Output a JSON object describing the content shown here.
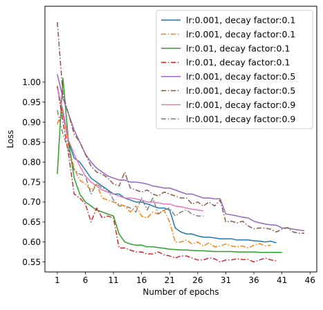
{
  "chart_data": {
    "type": "line",
    "title": "",
    "xlabel": "Number of epochs",
    "ylabel": "Loss",
    "xlim": [
      -1.2,
      47.2
    ],
    "ylim": [
      0.525,
      1.19
    ],
    "xticks": [
      1,
      6,
      11,
      16,
      21,
      26,
      31,
      36,
      41,
      46
    ],
    "yticks": [
      0.55,
      0.6,
      0.65,
      0.7,
      0.75,
      0.8,
      0.85,
      0.9,
      0.95,
      1.0
    ],
    "ytick_labels": [
      "0.55",
      "0.60",
      "0.65",
      "0.70",
      "0.75",
      "0.80",
      "0.85",
      "0.90",
      "0.95",
      "1.00"
    ],
    "grid": false,
    "legend_position": "top-right",
    "series": [
      {
        "name": "lr:0.001, decay factor:0.1",
        "color": "#1f77b4",
        "style": "solid",
        "x": [
          1,
          2,
          3,
          4,
          5,
          6,
          7,
          8,
          9,
          10,
          11,
          12,
          13,
          14,
          15,
          16,
          17,
          18,
          19,
          20,
          21,
          22,
          23,
          24,
          25,
          26,
          27,
          28,
          29,
          30,
          31,
          32,
          33,
          34,
          35,
          36,
          37,
          38,
          39,
          40
        ],
        "y": [
          0.99,
          0.92,
          0.85,
          0.81,
          0.8,
          0.78,
          0.76,
          0.75,
          0.74,
          0.73,
          0.72,
          0.72,
          0.71,
          0.705,
          0.7,
          0.7,
          0.695,
          0.69,
          0.685,
          0.685,
          0.68,
          0.635,
          0.625,
          0.62,
          0.62,
          0.615,
          0.612,
          0.612,
          0.61,
          0.608,
          0.608,
          0.608,
          0.605,
          0.605,
          0.605,
          0.603,
          0.602,
          0.6,
          0.602,
          0.598
        ]
      },
      {
        "name": "lr:0.001, decay factor:0.1",
        "color": "#ff7f0e",
        "style": "dashdot",
        "x": [
          1,
          2,
          3,
          4,
          5,
          6,
          7,
          8,
          9,
          10,
          11,
          12,
          13,
          14,
          15,
          16,
          17,
          18,
          19,
          20,
          21,
          22,
          23,
          24,
          25,
          26,
          27,
          28,
          29,
          30,
          31,
          32,
          33,
          34,
          35,
          36,
          37,
          38,
          39
        ],
        "y": [
          0.895,
          0.93,
          0.84,
          0.785,
          0.755,
          0.745,
          0.73,
          0.745,
          0.71,
          0.705,
          0.7,
          0.695,
          0.69,
          0.675,
          0.69,
          0.665,
          0.66,
          0.675,
          0.67,
          0.68,
          0.65,
          0.6,
          0.6,
          0.605,
          0.595,
          0.6,
          0.59,
          0.598,
          0.588,
          0.59,
          0.595,
          0.59,
          0.588,
          0.59,
          0.585,
          0.592,
          0.596,
          0.59,
          0.592
        ]
      },
      {
        "name": "lr:0.01, decay factor:0.1",
        "color": "#2ca02c",
        "style": "solid",
        "x": [
          1,
          2,
          3,
          4,
          5,
          6,
          7,
          8,
          9,
          10,
          11,
          12,
          13,
          14,
          15,
          16,
          17,
          18,
          19,
          20,
          21,
          22,
          23,
          24,
          25,
          26,
          27,
          28,
          29,
          30,
          31,
          32,
          33,
          34,
          35,
          36,
          37,
          38,
          39,
          40,
          41
        ],
        "y": [
          0.77,
          1.01,
          0.85,
          0.76,
          0.72,
          0.7,
          0.69,
          0.68,
          0.675,
          0.67,
          0.665,
          0.62,
          0.6,
          0.595,
          0.592,
          0.592,
          0.588,
          0.588,
          0.586,
          0.584,
          0.582,
          0.581,
          0.58,
          0.58,
          0.579,
          0.578,
          0.578,
          0.577,
          0.576,
          0.576,
          0.576,
          0.576,
          0.575,
          0.575,
          0.575,
          0.575,
          0.574,
          0.574,
          0.574,
          0.574,
          0.574
        ]
      },
      {
        "name": "lr:0.01, decay factor:0.1",
        "color": "#d62728",
        "style": "dashdot",
        "x": [
          1,
          2,
          3,
          4,
          5,
          6,
          7,
          8,
          9,
          10,
          11,
          12,
          13,
          14,
          15,
          16,
          17,
          18,
          19,
          20,
          21,
          22,
          23,
          24,
          25,
          26,
          27,
          28,
          29,
          30,
          31,
          32,
          33,
          34,
          35,
          36,
          37,
          38,
          39,
          40
        ],
        "y": [
          0.99,
          0.9,
          0.82,
          0.72,
          0.71,
          0.695,
          0.65,
          0.685,
          0.66,
          0.665,
          0.66,
          0.585,
          0.585,
          0.58,
          0.575,
          0.575,
          0.57,
          0.57,
          0.575,
          0.568,
          0.565,
          0.56,
          0.565,
          0.565,
          0.56,
          0.555,
          0.555,
          0.56,
          0.558,
          0.55,
          0.555,
          0.555,
          0.558,
          0.556,
          0.556,
          0.55,
          0.555,
          0.56,
          0.555,
          0.553
        ]
      },
      {
        "name": "lr:0.001, decay factor:0.5",
        "color": "#9467bd",
        "style": "solid",
        "x": [
          1,
          2,
          3,
          4,
          5,
          6,
          7,
          8,
          9,
          10,
          11,
          12,
          13,
          14,
          15,
          16,
          17,
          18,
          19,
          20,
          21,
          22,
          23,
          24,
          25,
          26,
          27,
          28,
          29,
          30,
          31,
          32,
          33,
          34,
          35,
          36,
          37,
          38,
          39,
          40,
          41,
          42,
          43,
          44,
          45
        ],
        "y": [
          1.02,
          0.96,
          0.92,
          0.88,
          0.85,
          0.82,
          0.8,
          0.785,
          0.775,
          0.765,
          0.76,
          0.755,
          0.755,
          0.75,
          0.75,
          0.748,
          0.745,
          0.74,
          0.738,
          0.735,
          0.735,
          0.73,
          0.725,
          0.72,
          0.72,
          0.715,
          0.71,
          0.71,
          0.708,
          0.708,
          0.67,
          0.668,
          0.665,
          0.662,
          0.66,
          0.652,
          0.648,
          0.645,
          0.643,
          0.642,
          0.635,
          0.635,
          0.632,
          0.63,
          0.628
        ]
      },
      {
        "name": "lr:0.001, decay factor:0.5",
        "color": "#8c564b",
        "style": "dashdot",
        "x": [
          1,
          2,
          3,
          4,
          5,
          6,
          7,
          8,
          9,
          10,
          11,
          12,
          13,
          14,
          15,
          16,
          17,
          18,
          19,
          20,
          21,
          22,
          23,
          24,
          25,
          26,
          27,
          28,
          29,
          30,
          31,
          32,
          33,
          34,
          35,
          36,
          37,
          38,
          39,
          40,
          41,
          42,
          43,
          44,
          45
        ],
        "y": [
          1.15,
          0.97,
          0.92,
          0.87,
          0.85,
          0.82,
          0.79,
          0.775,
          0.77,
          0.76,
          0.745,
          0.74,
          0.775,
          0.735,
          0.73,
          0.725,
          0.73,
          0.72,
          0.715,
          0.725,
          0.72,
          0.715,
          0.71,
          0.71,
          0.695,
          0.7,
          0.69,
          0.7,
          0.69,
          0.705,
          0.65,
          0.652,
          0.648,
          0.652,
          0.64,
          0.633,
          0.635,
          0.635,
          0.632,
          0.625,
          0.632,
          0.636,
          0.625,
          0.622,
          0.622
        ]
      },
      {
        "name": "lr:0.001, decay factor:0.9",
        "color": "#e377c2",
        "style": "solid",
        "x": [
          1,
          2,
          3,
          4,
          5,
          6,
          7,
          8,
          9,
          10,
          11,
          12,
          13,
          14,
          15,
          16,
          17,
          18,
          19,
          20,
          21,
          22,
          23,
          24,
          25,
          26,
          27
        ],
        "y": [
          0.985,
          0.93,
          0.855,
          0.82,
          0.79,
          0.765,
          0.75,
          0.74,
          0.73,
          0.725,
          0.72,
          0.715,
          0.71,
          0.71,
          0.708,
          0.705,
          0.7,
          0.7,
          0.698,
          0.695,
          0.695,
          0.69,
          0.688,
          0.685,
          0.682,
          0.68,
          0.678
        ]
      },
      {
        "name": "lr:0.001, decay factor:0.9",
        "color": "#7f7f7f",
        "style": "dashdot",
        "x": [
          1,
          2,
          3,
          4,
          5,
          6,
          7,
          8,
          9,
          10,
          11,
          12,
          13,
          14,
          15,
          16,
          17,
          18,
          19,
          20,
          21,
          22,
          23,
          24,
          25,
          26,
          27
        ],
        "y": [
          0.93,
          0.87,
          0.83,
          0.78,
          0.77,
          0.765,
          0.72,
          0.745,
          0.735,
          0.73,
          0.705,
          0.69,
          0.69,
          0.685,
          0.675,
          0.71,
          0.68,
          0.71,
          0.67,
          0.68,
          0.685,
          0.665,
          0.675,
          0.68,
          0.67,
          0.665,
          0.665
        ]
      }
    ]
  }
}
